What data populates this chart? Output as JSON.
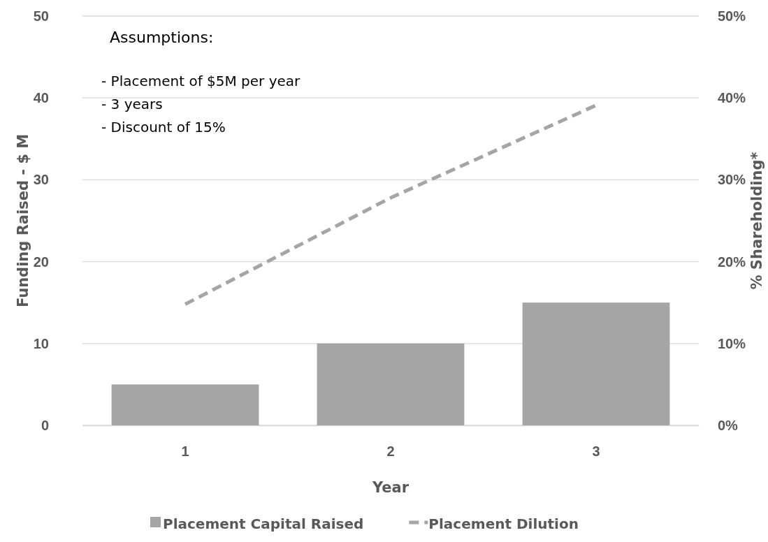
{
  "chart_data": {
    "type": "bar",
    "xlabel": "Year",
    "ylabel": "Funding Raised - $ M",
    "y2label": "% Shareholding*",
    "categories": [
      "1",
      "2",
      "3"
    ],
    "series": [
      {
        "name": "Placement Capital Raised",
        "color": "#a5a5a5",
        "values": [
          5,
          10,
          15
        ]
      },
      {
        "name": "Placement Dilution",
        "type": "line",
        "axis": "y2",
        "color": "#a5a5a5",
        "line_style": "dashed",
        "values": [
          14.8,
          27.8,
          39.1
        ]
      }
    ],
    "ylim": [
      0,
      50
    ],
    "yticks": [
      0,
      10,
      20,
      30,
      40,
      50
    ],
    "y2lim": [
      0,
      50
    ],
    "y2ticks": [
      {
        "value": 0,
        "label": "0%"
      },
      {
        "value": 10,
        "label": "10%"
      },
      {
        "value": 20,
        "label": "20%"
      },
      {
        "value": 30,
        "label": "30%"
      },
      {
        "value": 40,
        "label": "40%"
      },
      {
        "value": 50,
        "label": "50%"
      }
    ],
    "grid": "y",
    "legend": "bottom",
    "annotations": [
      "Assumptions:",
      "- Placement of $5M per year",
      "- 3 years",
      "- Discount of 15%"
    ]
  }
}
